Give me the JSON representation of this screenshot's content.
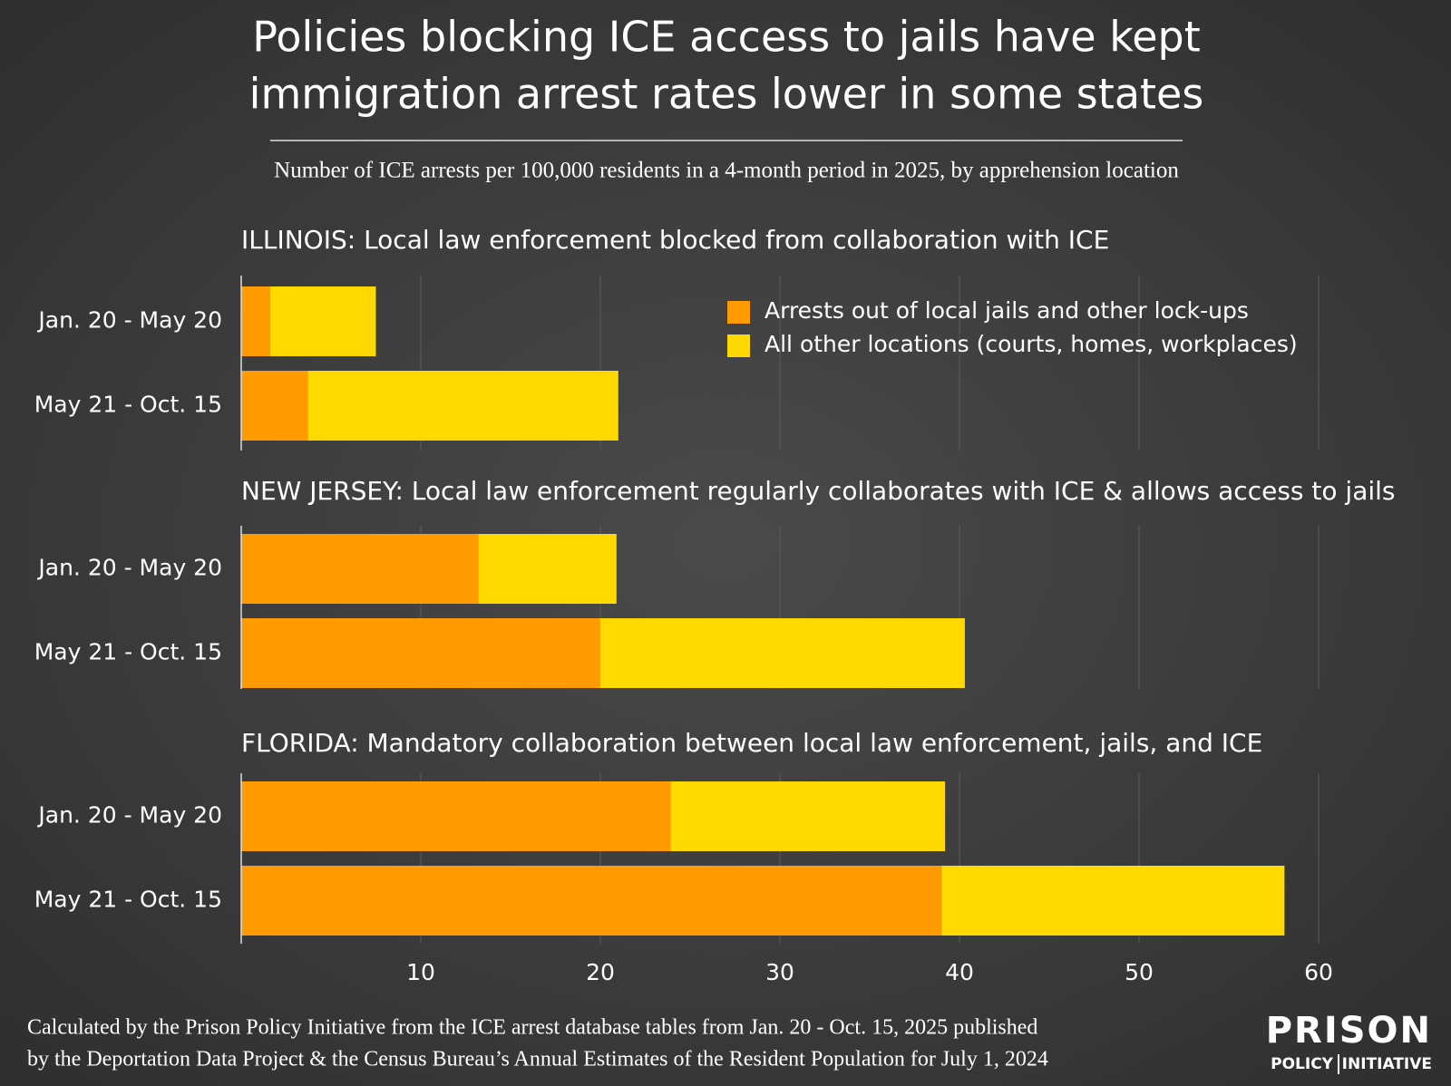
{
  "title": [
    "Policies blocking ICE access to jails have kept",
    "immigration arrest rates lower in some states"
  ],
  "subtitle": "Number of ICE arrests per 100,000 residents in a 4-month period in 2025, by apprehension location",
  "source": [
    "Calculated by the Prison Policy Initiative from the ICE arrest database tables from Jan. 20 - Oct. 15, 2025 published",
    "by the Deportation Data Project & the Census Bureau’s Annual Estimates of the Resident Population for July 1, 2024"
  ],
  "logo": {
    "top": "PRISON",
    "left": "POLICY",
    "right": "INITIATIVE"
  },
  "chart_data": [
    {
      "type": "stacked-barh",
      "title": "ILLINOIS: Local law enforcement blocked from collaboration with ICE",
      "categories": [
        "Jan. 20 - May 20",
        "May 21 - Oct. 15"
      ],
      "series": [
        {
          "name": "Arrests out of local jails and other lock-ups",
          "color": "#ff9a00",
          "values": [
            1.6,
            3.7
          ]
        },
        {
          "name": "All other locations (courts, homes, workplaces)",
          "color": "#ffd900",
          "values": [
            5.9,
            17.3
          ]
        }
      ],
      "xlim": [
        0,
        60
      ],
      "grid": true,
      "legend": "upper right"
    },
    {
      "type": "stacked-barh",
      "title": "NEW JERSEY: Local law enforcement regularly collaborates with ICE & allows access to jails",
      "categories": [
        "Jan. 20 - May 20",
        "May 21 - Oct. 15"
      ],
      "series": [
        {
          "color": "#ff9a00",
          "values": [
            13.2,
            20.0
          ]
        },
        {
          "color": "#ffd900",
          "values": [
            7.7,
            20.3
          ]
        }
      ],
      "xlim": [
        0,
        60
      ],
      "grid": true
    },
    {
      "type": "stacked-barh",
      "title": "FLORIDA: Mandatory collaboration between local law enforcement, jails, and ICE",
      "categories": [
        "Jan. 20 - May 20",
        "May 21 - Oct. 15"
      ],
      "series": [
        {
          "color": "#ff9a00",
          "values": [
            23.9,
            39.0
          ]
        },
        {
          "color": "#ffd900",
          "values": [
            15.3,
            19.1
          ]
        }
      ],
      "xlim": [
        0,
        60
      ],
      "xticks": [
        10,
        20,
        30,
        40,
        50,
        60
      ],
      "grid": true
    }
  ]
}
